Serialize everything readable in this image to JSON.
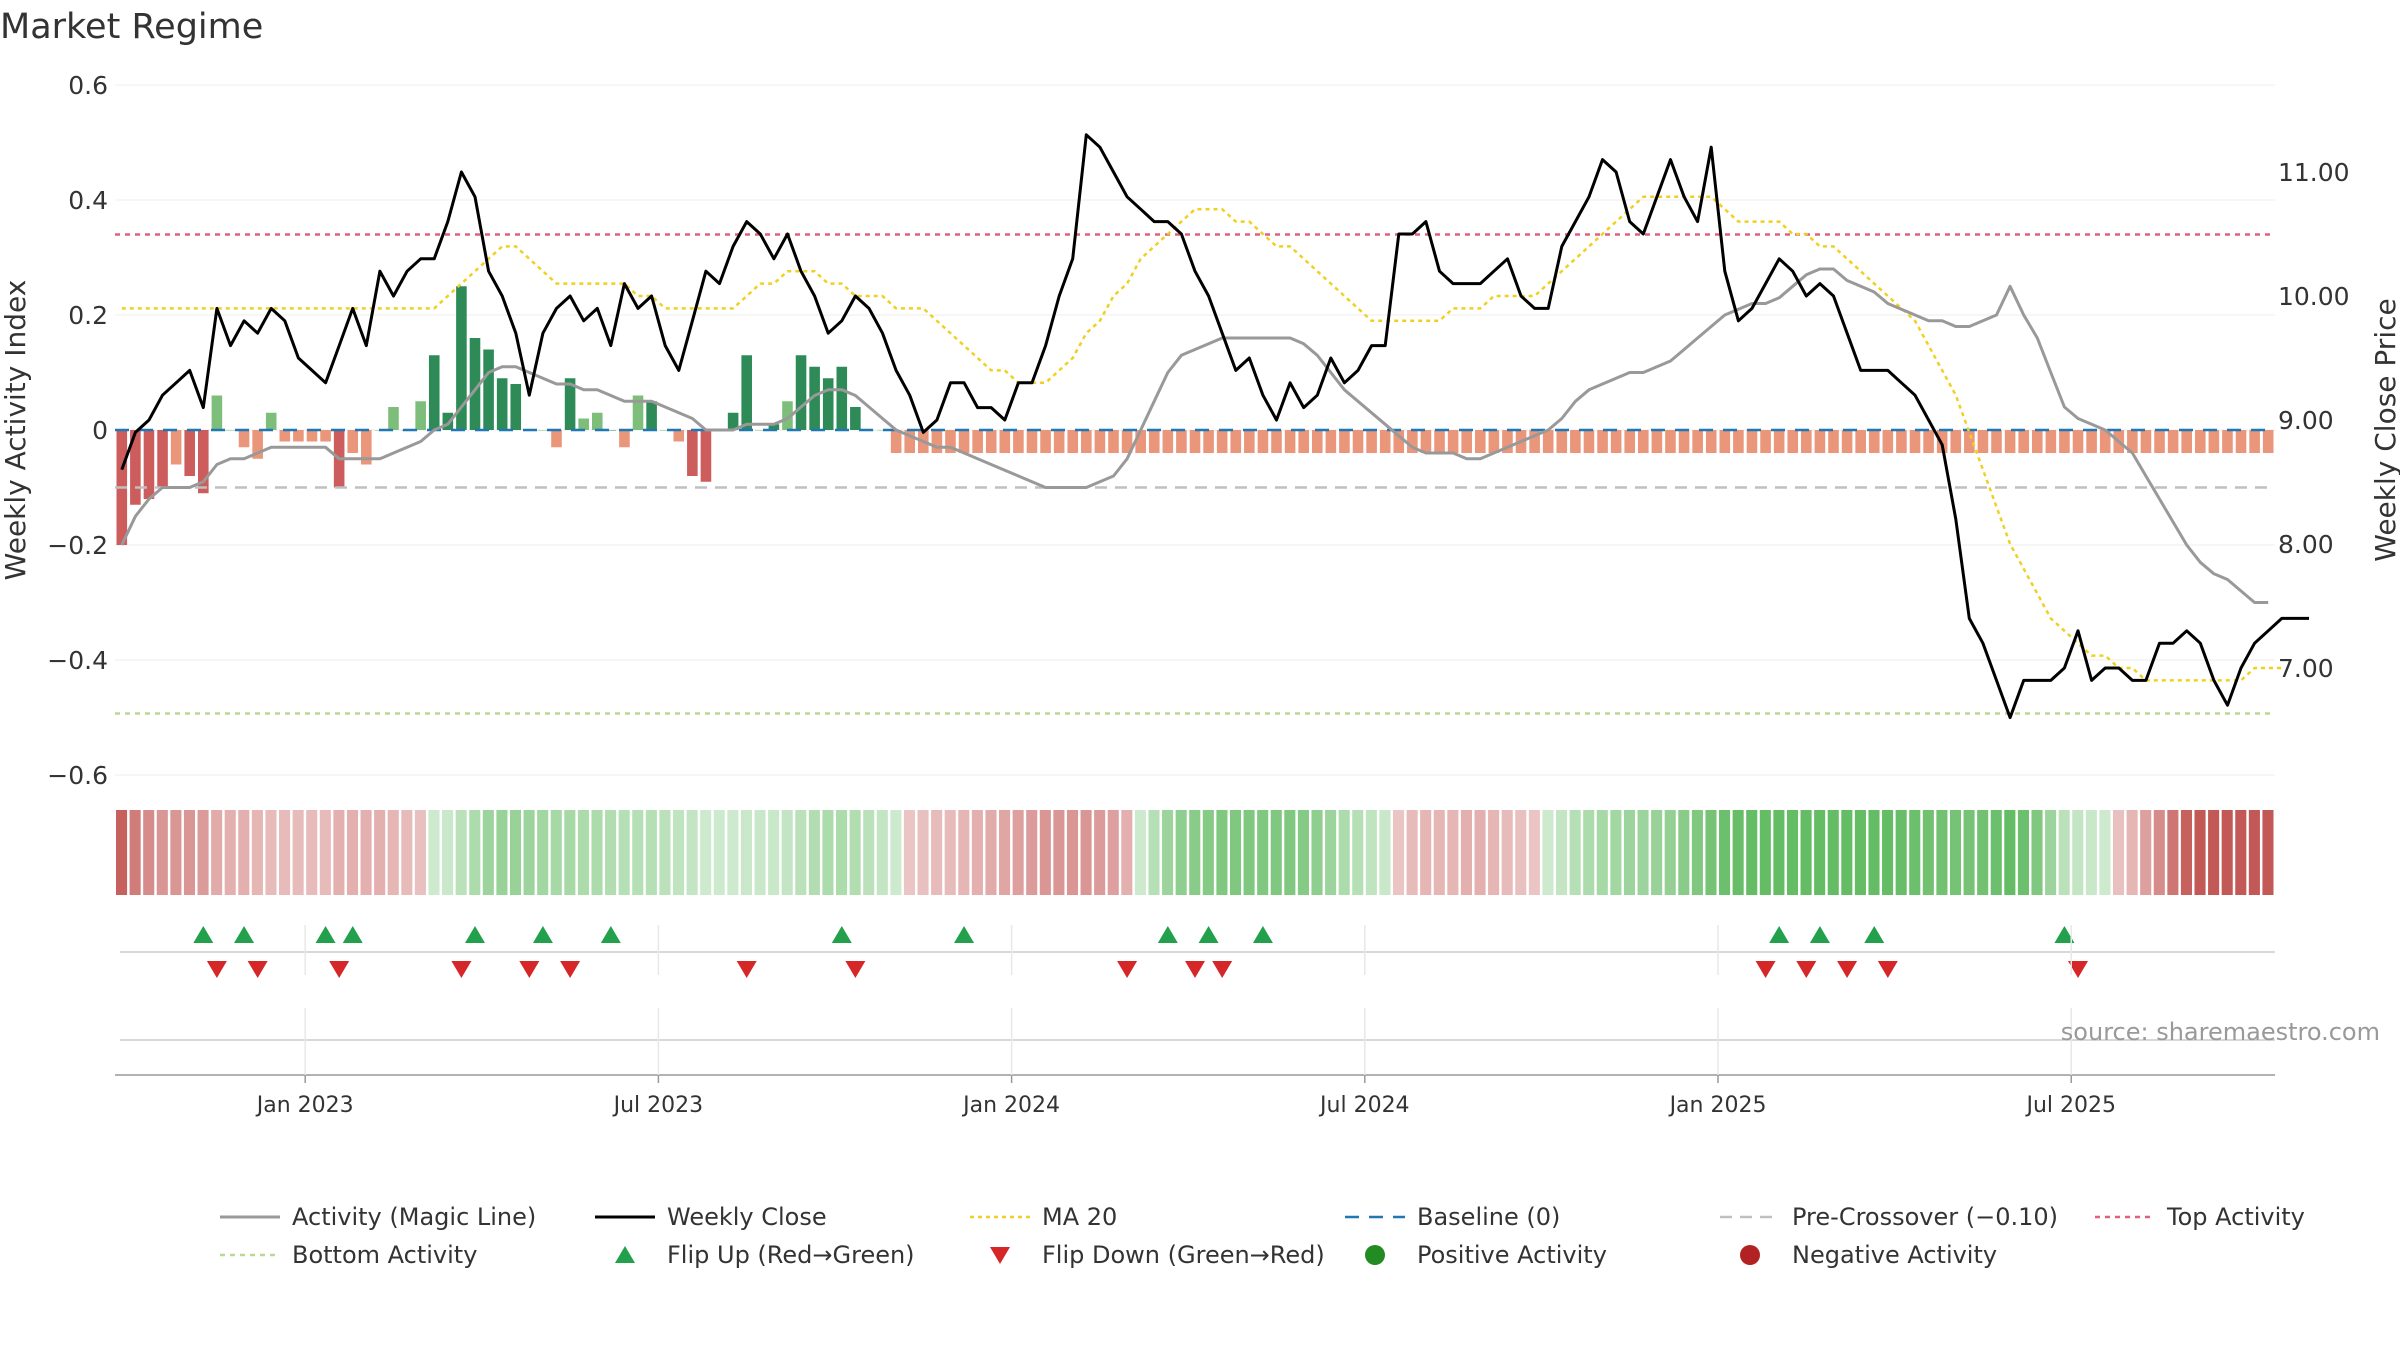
{
  "title": "Market Regime",
  "source": "source: sharemaestro.com",
  "axes": {
    "y_left_label": "Weekly Activity Index",
    "y_right_label": "Weekly Close Price",
    "y_left_ticks": [
      "0.6",
      "0.4",
      "0.2",
      "0",
      "−0.2",
      "−0.4",
      "−0.6"
    ],
    "y_right_ticks": [
      "11.00",
      "10.00",
      "9.00",
      "8.00",
      "7.00"
    ],
    "x_ticks": [
      "Jan 2023",
      "Jul 2023",
      "Jan 2024",
      "Jul 2024",
      "Jan 2025",
      "Jul 2025"
    ]
  },
  "legend": [
    {
      "key": "activity",
      "label": "Activity (Magic Line)"
    },
    {
      "key": "close",
      "label": "Weekly Close"
    },
    {
      "key": "ma20",
      "label": "MA 20"
    },
    {
      "key": "baseline",
      "label": "Baseline (0)"
    },
    {
      "key": "precross",
      "label": "Pre-Crossover (−0.10)"
    },
    {
      "key": "top",
      "label": "Top Activity"
    },
    {
      "key": "bottom",
      "label": "Bottom Activity"
    },
    {
      "key": "flipup",
      "label": "Flip Up (Red→Green)"
    },
    {
      "key": "flipdown",
      "label": "Flip Down (Green→Red)"
    },
    {
      "key": "pos",
      "label": "Positive Activity"
    },
    {
      "key": "neg",
      "label": "Negative Activity"
    }
  ],
  "colors": {
    "pos_strong": "#2e8b57",
    "pos_light": "#7dbf7a",
    "neg_strong": "#cd5c5c",
    "neg_light": "#e9967a",
    "activity_line": "#999999",
    "close_line": "#000000",
    "ma20": "#f0d020",
    "baseline": "#1f77b4",
    "precross": "#c0c0c0",
    "top": "#e0607e",
    "bottom": "#b8d98f",
    "flip_up": "#22a04b",
    "flip_down": "#d62728",
    "pos_marker": "#228b22",
    "neg_marker": "#b22222"
  },
  "chart_data": {
    "type": "bar",
    "x_axis": {
      "type": "date",
      "start": "2022-09-26",
      "weeks": 157
    },
    "ylim_left": [
      -0.6,
      0.6
    ],
    "ylim_right": [
      6.0,
      11.5
    ],
    "reference_lines": {
      "top_activity": 0.34,
      "bottom_activity": -0.493,
      "pre_crossover": -0.1,
      "baseline": 0
    },
    "activity_bars": [
      -0.2,
      -0.13,
      -0.12,
      -0.1,
      -0.06,
      -0.08,
      -0.11,
      0.06,
      0,
      -0.03,
      -0.05,
      0.03,
      -0.02,
      -0.02,
      -0.02,
      -0.02,
      -0.1,
      -0.04,
      -0.06,
      0,
      0.04,
      0,
      0.05,
      0.13,
      0.03,
      0.25,
      0.16,
      0.14,
      0.09,
      0.08,
      0,
      0,
      -0.03,
      0.09,
      0.02,
      0.03,
      0,
      -0.03,
      0.06,
      0.05,
      0,
      -0.02,
      -0.08,
      -0.09,
      0,
      0.03,
      0.13,
      0,
      0.01,
      0.05,
      0.13,
      0.11,
      0.09,
      0.11,
      0.04,
      0,
      0,
      -0.04,
      -0.04,
      -0.04,
      -0.04,
      -0.04,
      -0.04,
      -0.04,
      -0.04,
      -0.04,
      -0.04,
      -0.04,
      -0.04,
      -0.04,
      -0.04,
      -0.04,
      -0.04,
      -0.04,
      -0.04,
      -0.04,
      -0.04,
      -0.04,
      -0.04,
      -0.04,
      -0.04,
      -0.04,
      -0.04,
      -0.04,
      -0.04,
      -0.04,
      -0.04,
      -0.04,
      -0.04,
      -0.04,
      -0.04,
      -0.04,
      -0.04,
      -0.04,
      -0.04,
      -0.04,
      -0.04,
      -0.04,
      -0.04,
      -0.04,
      -0.04,
      -0.04,
      -0.04,
      -0.04,
      -0.04,
      -0.04,
      -0.04,
      -0.04,
      -0.04,
      -0.04,
      -0.04,
      -0.04,
      -0.04,
      -0.04,
      -0.04,
      -0.04,
      -0.04,
      -0.04,
      -0.04,
      -0.04,
      -0.04,
      -0.04,
      -0.04,
      -0.04,
      -0.04,
      -0.04,
      -0.04,
      -0.04,
      -0.04,
      -0.04,
      -0.04,
      -0.04,
      -0.04,
      -0.04,
      -0.04,
      -0.04,
      -0.04,
      -0.04,
      -0.04,
      -0.04,
      -0.04,
      -0.04,
      -0.04,
      -0.04,
      -0.04,
      -0.04,
      -0.04,
      -0.04,
      -0.04,
      -0.04,
      -0.04,
      -0.04,
      -0.04,
      -0.04,
      -0.04,
      -0.04,
      -0.04,
      -0.04,
      -0.04
    ],
    "activity_line": [
      -0.2,
      -0.15,
      -0.12,
      -0.1,
      -0.1,
      -0.1,
      -0.09,
      -0.06,
      -0.05,
      -0.05,
      -0.04,
      -0.03,
      -0.03,
      -0.03,
      -0.03,
      -0.03,
      -0.05,
      -0.05,
      -0.05,
      -0.05,
      -0.04,
      -0.03,
      -0.02,
      0,
      0.01,
      0.04,
      0.07,
      0.1,
      0.11,
      0.11,
      0.1,
      0.09,
      0.08,
      0.08,
      0.07,
      0.07,
      0.06,
      0.05,
      0.05,
      0.05,
      0.04,
      0.03,
      0.02,
      0,
      0,
      0,
      0.01,
      0.01,
      0.01,
      0.02,
      0.04,
      0.06,
      0.07,
      0.07,
      0.06,
      0.04,
      0.02,
      0,
      -0.01,
      -0.02,
      -0.03,
      -0.03,
      -0.04,
      -0.05,
      -0.06,
      -0.07,
      -0.08,
      -0.09,
      -0.1,
      -0.1,
      -0.1,
      -0.1,
      -0.09,
      -0.08,
      -0.05,
      0,
      0.05,
      0.1,
      0.13,
      0.14,
      0.15,
      0.16,
      0.16,
      0.16,
      0.16,
      0.16,
      0.16,
      0.15,
      0.13,
      0.1,
      0.07,
      0.05,
      0.03,
      0.01,
      -0.01,
      -0.03,
      -0.04,
      -0.04,
      -0.04,
      -0.05,
      -0.05,
      -0.04,
      -0.03,
      -0.02,
      -0.01,
      0,
      0.02,
      0.05,
      0.07,
      0.08,
      0.09,
      0.1,
      0.1,
      0.11,
      0.12,
      0.14,
      0.16,
      0.18,
      0.2,
      0.21,
      0.22,
      0.22,
      0.23,
      0.25,
      0.27,
      0.28,
      0.28,
      0.26,
      0.25,
      0.24,
      0.22,
      0.21,
      0.2,
      0.19,
      0.19,
      0.18,
      0.18,
      0.19,
      0.2,
      0.25,
      0.2,
      0.16,
      0.1,
      0.04,
      0.02,
      0.01,
      0,
      -0.02,
      -0.04,
      -0.08,
      -0.12,
      -0.16,
      -0.2,
      -0.23,
      -0.25,
      -0.26,
      -0.28,
      -0.3,
      -0.3
    ],
    "weekly_close": [
      8.6,
      8.9,
      9.0,
      9.2,
      9.3,
      9.4,
      9.1,
      9.9,
      9.6,
      9.8,
      9.7,
      9.9,
      9.8,
      9.5,
      9.4,
      9.3,
      9.6,
      9.9,
      9.6,
      10.2,
      10.0,
      10.2,
      10.3,
      10.3,
      10.6,
      11.0,
      10.8,
      10.2,
      10.0,
      9.7,
      9.2,
      9.7,
      9.9,
      10.0,
      9.8,
      9.9,
      9.6,
      10.1,
      9.9,
      10.0,
      9.6,
      9.4,
      9.8,
      10.2,
      10.1,
      10.4,
      10.6,
      10.5,
      10.3,
      10.5,
      10.2,
      10.0,
      9.7,
      9.8,
      10.0,
      9.9,
      9.7,
      9.4,
      9.2,
      8.9,
      9.0,
      9.3,
      9.3,
      9.1,
      9.1,
      9.0,
      9.3,
      9.3,
      9.6,
      10.0,
      10.3,
      11.3,
      11.2,
      11.0,
      10.8,
      10.7,
      10.6,
      10.6,
      10.5,
      10.2,
      10.0,
      9.7,
      9.4,
      9.5,
      9.2,
      9.0,
      9.3,
      9.1,
      9.2,
      9.5,
      9.3,
      9.4,
      9.6,
      9.6,
      10.5,
      10.5,
      10.6,
      10.2,
      10.1,
      10.1,
      10.1,
      10.2,
      10.3,
      10.0,
      9.9,
      9.9,
      10.4,
      10.6,
      10.8,
      11.1,
      11.0,
      10.6,
      10.5,
      10.8,
      11.1,
      10.8,
      10.6,
      11.2,
      10.2,
      9.8,
      9.9,
      10.1,
      10.3,
      10.2,
      10.0,
      10.1,
      10.0,
      9.7,
      9.4,
      9.4,
      9.4,
      9.3,
      9.2,
      9.0,
      8.8,
      8.2,
      7.4,
      7.2,
      6.9,
      6.6,
      6.9,
      6.9,
      6.9,
      7.0,
      7.3,
      6.9,
      7.0,
      7.0,
      6.9,
      6.9,
      7.2,
      7.2,
      7.3,
      7.2,
      6.9,
      6.7,
      7.0,
      7.2,
      7.3,
      7.4,
      7.4,
      7.4
    ],
    "ma20": [
      9.9,
      9.9,
      9.9,
      9.9,
      9.9,
      9.9,
      9.9,
      9.9,
      9.9,
      9.9,
      9.9,
      9.9,
      9.9,
      9.9,
      9.9,
      9.9,
      9.9,
      9.9,
      9.9,
      9.9,
      9.9,
      9.9,
      9.9,
      9.9,
      10.0,
      10.1,
      10.2,
      10.3,
      10.4,
      10.4,
      10.3,
      10.2,
      10.1,
      10.1,
      10.1,
      10.1,
      10.1,
      10.1,
      10.0,
      10.0,
      9.9,
      9.9,
      9.9,
      9.9,
      9.9,
      9.9,
      10.0,
      10.1,
      10.1,
      10.2,
      10.2,
      10.2,
      10.1,
      10.1,
      10.0,
      10.0,
      10.0,
      9.9,
      9.9,
      9.9,
      9.8,
      9.7,
      9.6,
      9.5,
      9.4,
      9.4,
      9.3,
      9.3,
      9.3,
      9.4,
      9.5,
      9.7,
      9.8,
      10.0,
      10.1,
      10.3,
      10.4,
      10.5,
      10.6,
      10.7,
      10.7,
      10.7,
      10.6,
      10.6,
      10.5,
      10.4,
      10.4,
      10.3,
      10.2,
      10.1,
      10.0,
      9.9,
      9.8,
      9.8,
      9.8,
      9.8,
      9.8,
      9.8,
      9.9,
      9.9,
      9.9,
      10.0,
      10.0,
      10.0,
      10.0,
      10.1,
      10.2,
      10.3,
      10.4,
      10.5,
      10.6,
      10.7,
      10.8,
      10.8,
      10.8,
      10.8,
      10.8,
      10.8,
      10.7,
      10.6,
      10.6,
      10.6,
      10.6,
      10.5,
      10.5,
      10.4,
      10.4,
      10.3,
      10.2,
      10.1,
      10.0,
      9.9,
      9.8,
      9.6,
      9.4,
      9.2,
      8.9,
      8.6,
      8.3,
      8.0,
      7.8,
      7.6,
      7.4,
      7.3,
      7.2,
      7.1,
      7.1,
      7.0,
      7.0,
      6.9,
      6.9,
      6.9,
      6.9,
      6.9,
      6.9,
      6.9,
      6.9,
      7.0,
      7.0,
      7.0
    ],
    "flip_up_weeks": [
      6,
      9,
      15,
      17,
      26,
      31,
      36,
      53,
      62,
      77,
      80,
      84,
      122,
      125,
      129,
      143
    ],
    "flip_down_weeks": [
      7,
      10,
      16,
      25,
      30,
      33,
      46,
      54,
      74,
      79,
      81,
      121,
      124,
      127,
      130,
      144
    ],
    "regime_strip": "first weeks red, alternating mild green and red through 2023, strong green Dec 2023–Feb 2024, green through 2024, red from Mar 2025 onward"
  }
}
